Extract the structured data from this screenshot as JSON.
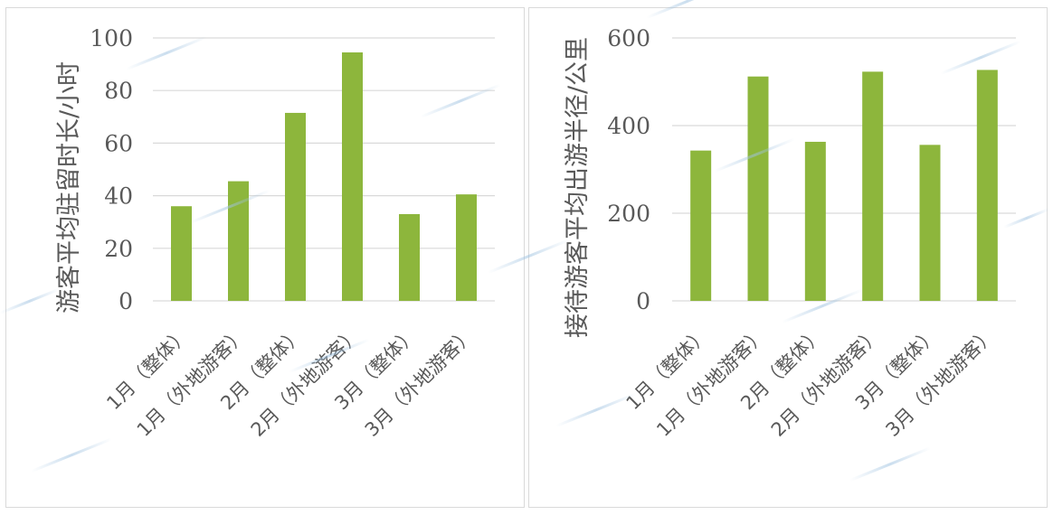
{
  "colors": {
    "bar": "#8db63c",
    "grid": "#d9d9d9",
    "text": "#595959"
  },
  "chart_data": [
    {
      "type": "bar",
      "title": "",
      "ylabel": "游客平均驻留时长/小时",
      "xlabel": "",
      "categories": [
        "1月（整体）",
        "1月（外地游客）",
        "2月（整体）",
        "2月（外地游客）",
        "3月（整体）",
        "3月（外地游客）"
      ],
      "values": [
        36,
        45.5,
        71.5,
        94.5,
        33,
        40.5
      ],
      "ylim": [
        0,
        100
      ],
      "yticks": [
        0,
        20,
        40,
        60,
        80,
        100
      ],
      "grid": true
    },
    {
      "type": "bar",
      "title": "",
      "ylabel": "接待游客平均出游半径/公里",
      "xlabel": "",
      "categories": [
        "1月（整体）",
        "1月（外地游客）",
        "2月（整体）",
        "2月（外地游客）",
        "3月（整体）",
        "3月（外地游客）"
      ],
      "values": [
        343,
        512,
        363,
        523,
        356,
        527
      ],
      "ylim": [
        0,
        600
      ],
      "yticks": [
        0,
        200,
        400,
        600
      ],
      "grid": true
    }
  ]
}
